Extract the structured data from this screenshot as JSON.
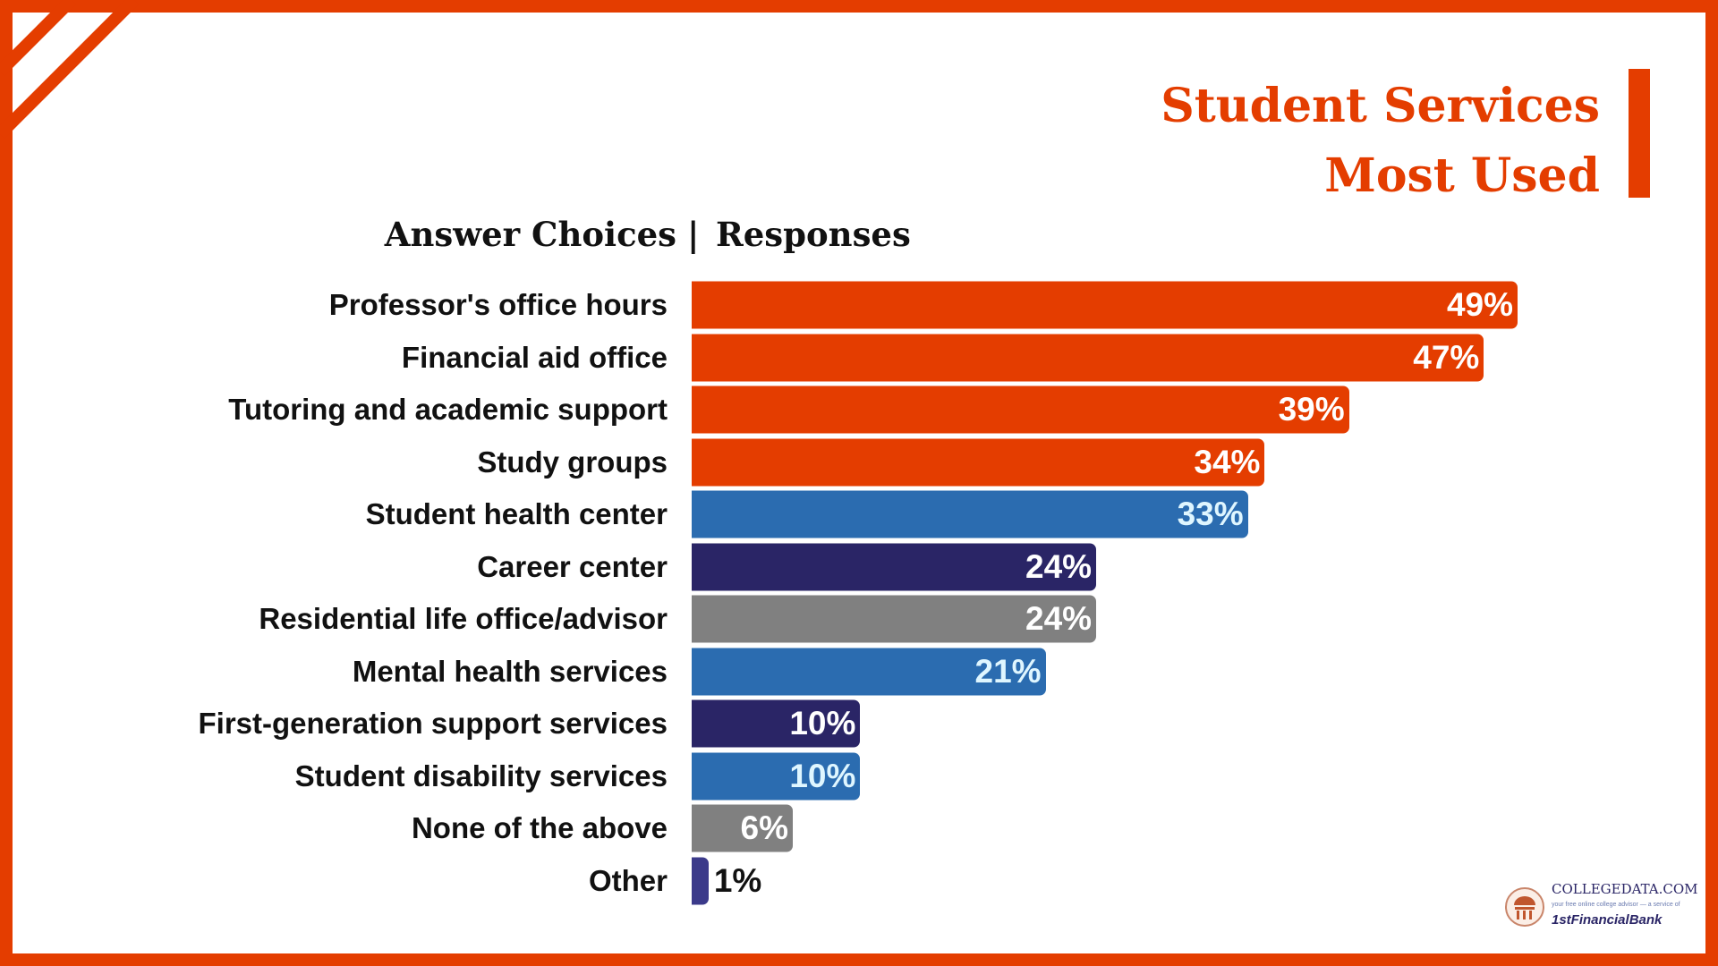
{
  "title_line1": "Student Services",
  "title_line2": "Most Used",
  "header_left": "Answer Choices",
  "header_sep": "|",
  "header_right": "Responses",
  "logo": {
    "name": "COLLEGEDATA.COM",
    "tagline": "your free online college advisor — a service of",
    "bank": "1stFinancialBank"
  },
  "colors": {
    "orange": "#E43D00",
    "blue": "#2B6CB0",
    "navy": "#2A2566",
    "gray": "#808080"
  },
  "chart_data": {
    "type": "bar",
    "orientation": "horizontal",
    "xlabel": "",
    "ylabel": "",
    "xlim": [
      0,
      49
    ],
    "grid": false,
    "categories": [
      "Professor's office hours",
      "Financial aid office",
      "Tutoring and academic support",
      "Study groups",
      "Student health center",
      "Career center",
      "Residential life office/advisor",
      "Mental health services",
      "First-generation support services",
      "Student disability services",
      "None of the above",
      "Other"
    ],
    "values": [
      49,
      47,
      39,
      34,
      33,
      24,
      24,
      21,
      10,
      10,
      6,
      1
    ],
    "labels": [
      "49%",
      "47%",
      "39%",
      "34%",
      "33%",
      "24%",
      "24%",
      "21%",
      "10%",
      "10%",
      "6%",
      "1%"
    ],
    "bar_colors": [
      "#E43D00",
      "#E43D00",
      "#E43D00",
      "#E43D00",
      "#2B6CB0",
      "#2A2566",
      "#808080",
      "#2B6CB0",
      "#2A2566",
      "#2B6CB0",
      "#808080",
      "#3B3A8A"
    ]
  }
}
